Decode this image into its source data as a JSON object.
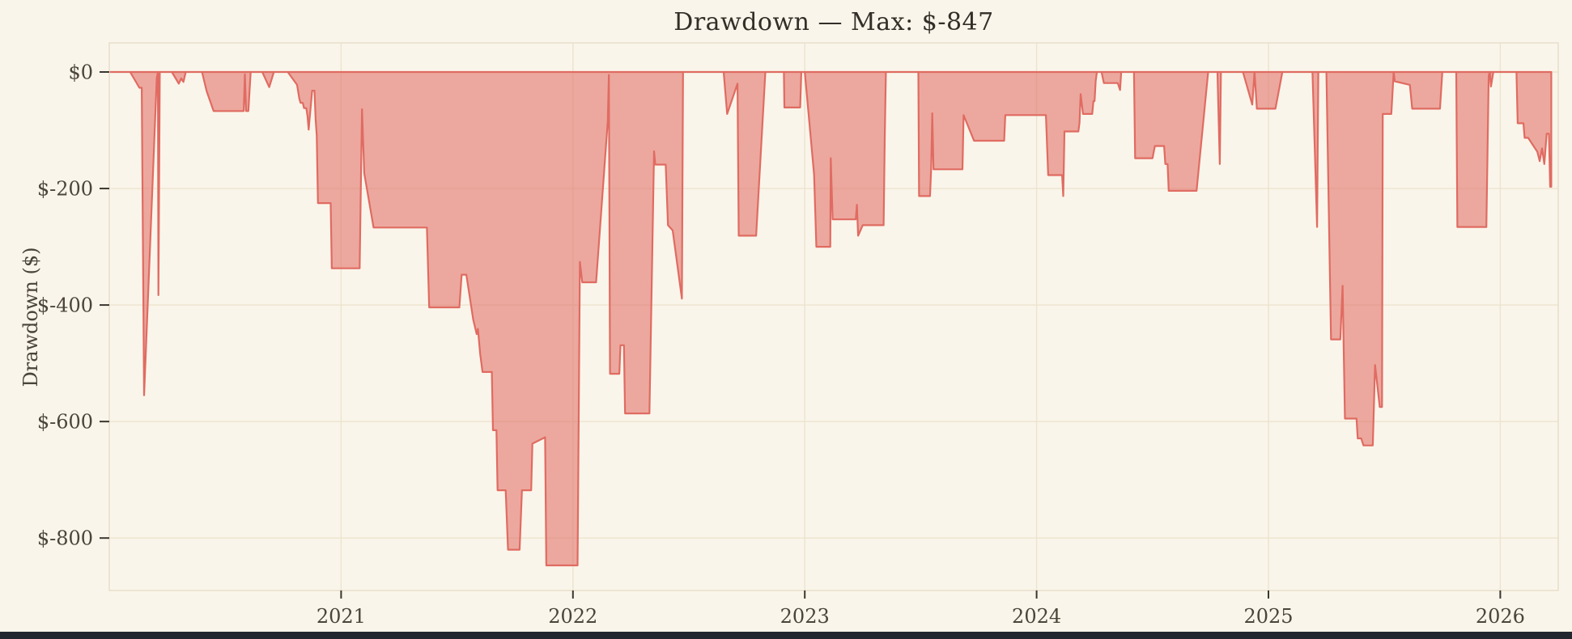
{
  "title": "Drawdown — Max: $-847",
  "y_axis": {
    "label": "Drawdown ($)",
    "ticks": [
      {
        "label": "$0",
        "value": 0
      },
      {
        "label": "$-200",
        "value": -200
      },
      {
        "label": "$-400",
        "value": -400
      },
      {
        "label": "$-600",
        "value": -600
      },
      {
        "label": "$-800",
        "value": -800
      }
    ]
  },
  "x_axis": {
    "ticks": [
      {
        "label": "2021",
        "value": 2021
      },
      {
        "label": "2022",
        "value": 2022
      },
      {
        "label": "2023",
        "value": 2023
      },
      {
        "label": "2024",
        "value": 2024
      },
      {
        "label": "2025",
        "value": 2025
      },
      {
        "label": "2026",
        "value": 2026
      }
    ]
  },
  "colors": {
    "background": "#faf5ea",
    "grid": "#ece3cf",
    "spine": "#e7decb",
    "tick": "#3b3731",
    "text": "#4a4439",
    "title_text": "#332e28",
    "area_fill": "rgba(226,112,104,0.58)",
    "area_stroke": "#e06b62",
    "bottom_bar": "#22262e"
  },
  "chart_data": {
    "type": "area",
    "title": "Drawdown — Max: $-847",
    "xlabel": "",
    "ylabel": "Drawdown ($)",
    "x_range": [
      2020.0,
      2026.25
    ],
    "ylim": [
      -890,
      50
    ],
    "baseline": 0,
    "grid": true,
    "legend": false,
    "max_drawdown": -847,
    "x_ticks": [
      2021,
      2022,
      2023,
      2024,
      2025,
      2026
    ],
    "y_ticks": [
      0,
      -200,
      -400,
      -600,
      -800
    ],
    "series": [
      {
        "name": "Drawdown",
        "points": [
          [
            2020.0,
            0
          ],
          [
            2020.09,
            0
          ],
          [
            2020.13,
            -27
          ],
          [
            2020.14,
            -27
          ],
          [
            2020.15,
            -555
          ],
          [
            2020.205,
            -10
          ],
          [
            2020.21,
            0
          ],
          [
            2020.212,
            -383
          ],
          [
            2020.218,
            0
          ],
          [
            2020.27,
            0
          ],
          [
            2020.3,
            -20
          ],
          [
            2020.31,
            -11
          ],
          [
            2020.32,
            -17
          ],
          [
            2020.33,
            0
          ],
          [
            2020.4,
            0
          ],
          [
            2020.42,
            -33
          ],
          [
            2020.45,
            -67
          ],
          [
            2020.58,
            -67
          ],
          [
            2020.585,
            -4
          ],
          [
            2020.59,
            -67
          ],
          [
            2020.6,
            -67
          ],
          [
            2020.61,
            0
          ],
          [
            2020.66,
            0
          ],
          [
            2020.69,
            -26
          ],
          [
            2020.71,
            0
          ],
          [
            2020.77,
            0
          ],
          [
            2020.81,
            -22
          ],
          [
            2020.82,
            -46
          ],
          [
            2020.825,
            -53
          ],
          [
            2020.835,
            -53
          ],
          [
            2020.84,
            -62
          ],
          [
            2020.85,
            -62
          ],
          [
            2020.855,
            -76
          ],
          [
            2020.86,
            -99
          ],
          [
            2020.875,
            -32
          ],
          [
            2020.885,
            -32
          ],
          [
            2020.89,
            -81
          ],
          [
            2020.895,
            -109
          ],
          [
            2020.9,
            -225
          ],
          [
            2020.955,
            -225
          ],
          [
            2020.96,
            -337
          ],
          [
            2021.08,
            -337
          ],
          [
            2021.09,
            -64
          ],
          [
            2021.1,
            -174
          ],
          [
            2021.14,
            -267
          ],
          [
            2021.37,
            -267
          ],
          [
            2021.38,
            -404
          ],
          [
            2021.51,
            -404
          ],
          [
            2021.52,
            -348
          ],
          [
            2021.54,
            -348
          ],
          [
            2021.57,
            -425
          ],
          [
            2021.585,
            -450
          ],
          [
            2021.59,
            -441
          ],
          [
            2021.6,
            -484
          ],
          [
            2021.61,
            -515
          ],
          [
            2021.65,
            -515
          ],
          [
            2021.655,
            -615
          ],
          [
            2021.67,
            -615
          ],
          [
            2021.675,
            -718
          ],
          [
            2021.71,
            -718
          ],
          [
            2021.72,
            -820
          ],
          [
            2021.77,
            -820
          ],
          [
            2021.78,
            -718
          ],
          [
            2021.82,
            -718
          ],
          [
            2021.825,
            -638
          ],
          [
            2021.88,
            -627
          ],
          [
            2021.885,
            -847
          ],
          [
            2022.02,
            -847
          ],
          [
            2022.03,
            -326
          ],
          [
            2022.04,
            -361
          ],
          [
            2022.1,
            -361
          ],
          [
            2022.15,
            -85
          ],
          [
            2022.155,
            -5
          ],
          [
            2022.16,
            -518
          ],
          [
            2022.2,
            -518
          ],
          [
            2022.205,
            -469
          ],
          [
            2022.22,
            -469
          ],
          [
            2022.225,
            -586
          ],
          [
            2022.33,
            -586
          ],
          [
            2022.35,
            -136
          ],
          [
            2022.355,
            -159
          ],
          [
            2022.4,
            -159
          ],
          [
            2022.41,
            -263
          ],
          [
            2022.43,
            -272
          ],
          [
            2022.47,
            -389
          ],
          [
            2022.475,
            0
          ],
          [
            2022.65,
            0
          ],
          [
            2022.665,
            -72
          ],
          [
            2022.71,
            -20
          ],
          [
            2022.715,
            -281
          ],
          [
            2022.79,
            -281
          ],
          [
            2022.83,
            0
          ],
          [
            2022.91,
            0
          ],
          [
            2022.912,
            -61
          ],
          [
            2022.98,
            -61
          ],
          [
            2022.985,
            0
          ],
          [
            2023.0,
            0
          ],
          [
            2023.04,
            -176
          ],
          [
            2023.05,
            -300
          ],
          [
            2023.11,
            -300
          ],
          [
            2023.112,
            -148
          ],
          [
            2023.12,
            -253
          ],
          [
            2023.22,
            -253
          ],
          [
            2023.225,
            -228
          ],
          [
            2023.23,
            -281
          ],
          [
            2023.25,
            -263
          ],
          [
            2023.34,
            -263
          ],
          [
            2023.345,
            -112
          ],
          [
            2023.35,
            0
          ],
          [
            2023.49,
            0
          ],
          [
            2023.493,
            -213
          ],
          [
            2023.54,
            -213
          ],
          [
            2023.545,
            -167
          ],
          [
            2023.55,
            -71
          ],
          [
            2023.555,
            -167
          ],
          [
            2023.68,
            -167
          ],
          [
            2023.685,
            -74
          ],
          [
            2023.73,
            -118
          ],
          [
            2023.86,
            -118
          ],
          [
            2023.865,
            -74
          ],
          [
            2024.04,
            -74
          ],
          [
            2024.05,
            -177
          ],
          [
            2024.11,
            -177
          ],
          [
            2024.115,
            -213
          ],
          [
            2024.12,
            -102
          ],
          [
            2024.18,
            -102
          ],
          [
            2024.185,
            -87
          ],
          [
            2024.19,
            -38
          ],
          [
            2024.2,
            -72
          ],
          [
            2024.24,
            -72
          ],
          [
            2024.245,
            -50
          ],
          [
            2024.25,
            -50
          ],
          [
            2024.255,
            -15
          ],
          [
            2024.26,
            0
          ],
          [
            2024.28,
            0
          ],
          [
            2024.29,
            -19
          ],
          [
            2024.35,
            -19
          ],
          [
            2024.36,
            -31
          ],
          [
            2024.365,
            0
          ],
          [
            2024.42,
            0
          ],
          [
            2024.425,
            -148
          ],
          [
            2024.5,
            -148
          ],
          [
            2024.51,
            -127
          ],
          [
            2024.55,
            -127
          ],
          [
            2024.555,
            -158
          ],
          [
            2024.565,
            -158
          ],
          [
            2024.57,
            -204
          ],
          [
            2024.69,
            -204
          ],
          [
            2024.74,
            0
          ],
          [
            2024.78,
            0
          ],
          [
            2024.79,
            -158
          ],
          [
            2024.795,
            0
          ],
          [
            2024.89,
            0
          ],
          [
            2024.93,
            -56
          ],
          [
            2024.94,
            0
          ],
          [
            2024.95,
            -63
          ],
          [
            2025.03,
            -63
          ],
          [
            2025.06,
            0
          ],
          [
            2025.19,
            0
          ],
          [
            2025.21,
            -266
          ],
          [
            2025.215,
            0
          ],
          [
            2025.25,
            0
          ],
          [
            2025.27,
            -459
          ],
          [
            2025.31,
            -459
          ],
          [
            2025.32,
            -367
          ],
          [
            2025.33,
            -595
          ],
          [
            2025.38,
            -595
          ],
          [
            2025.385,
            -629
          ],
          [
            2025.4,
            -629
          ],
          [
            2025.41,
            -641
          ],
          [
            2025.45,
            -641
          ],
          [
            2025.46,
            -503
          ],
          [
            2025.48,
            -575
          ],
          [
            2025.49,
            -575
          ],
          [
            2025.493,
            -72
          ],
          [
            2025.53,
            -72
          ],
          [
            2025.54,
            0
          ],
          [
            2025.545,
            -16
          ],
          [
            2025.61,
            -22
          ],
          [
            2025.62,
            -63
          ],
          [
            2025.74,
            -63
          ],
          [
            2025.75,
            0
          ],
          [
            2025.81,
            0
          ],
          [
            2025.815,
            -266
          ],
          [
            2025.94,
            -266
          ],
          [
            2025.95,
            -6
          ],
          [
            2025.955,
            0
          ],
          [
            2025.96,
            -25
          ],
          [
            2025.97,
            0
          ],
          [
            2026.07,
            0
          ],
          [
            2026.075,
            -88
          ],
          [
            2026.1,
            -88
          ],
          [
            2026.105,
            -113
          ],
          [
            2026.12,
            -113
          ],
          [
            2026.16,
            -137
          ],
          [
            2026.17,
            -153
          ],
          [
            2026.18,
            -131
          ],
          [
            2026.19,
            -158
          ],
          [
            2026.2,
            -106
          ],
          [
            2026.21,
            -106
          ],
          [
            2026.215,
            -197
          ],
          [
            2026.22,
            -197
          ]
        ]
      }
    ]
  }
}
